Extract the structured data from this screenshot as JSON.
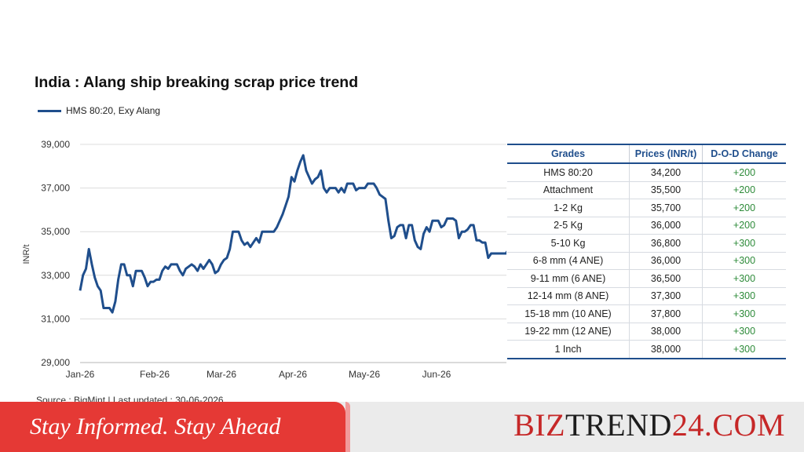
{
  "chart_data": {
    "type": "line",
    "title": "India : Alang ship breaking scrap price trend",
    "ylabel": "INR/t",
    "xlabel": "",
    "ylim": [
      29000,
      39000
    ],
    "yticks": [
      29000,
      31000,
      33000,
      35000,
      37000,
      39000
    ],
    "ytick_labels": [
      "29,000",
      "31,000",
      "33,000",
      "35,000",
      "37,000",
      "39,000"
    ],
    "xticks": [
      "Jan-26",
      "Feb-26",
      "Mar-26",
      "Apr-26",
      "May-26",
      "Jun-26"
    ],
    "grid": "horizontal",
    "legend_position": "top-left",
    "series": [
      {
        "name": "HMS 80:20, Exy Alang",
        "color": "#1f4e8c",
        "values": [
          32300,
          33000,
          33300,
          34200,
          33500,
          32900,
          32500,
          32300,
          31500,
          31500,
          31500,
          31300,
          31800,
          32800,
          33500,
          33500,
          33000,
          33000,
          32500,
          33200,
          33200,
          33200,
          32900,
          32500,
          32700,
          32700,
          32800,
          32800,
          33200,
          33400,
          33300,
          33500,
          33500,
          33500,
          33200,
          33000,
          33300,
          33400,
          33500,
          33400,
          33200,
          33500,
          33300,
          33500,
          33700,
          33500,
          33100,
          33200,
          33500,
          33700,
          33800,
          34200,
          35000,
          35000,
          35000,
          34600,
          34400,
          34500,
          34300,
          34500,
          34700,
          34500,
          35000,
          35000,
          35000,
          35000,
          35000,
          35200,
          35500,
          35800,
          36200,
          36600,
          37500,
          37300,
          37800,
          38200,
          38500,
          37800,
          37500,
          37200,
          37400,
          37500,
          37800,
          37000,
          36800,
          37000,
          37000,
          37000,
          36800,
          37000,
          36800,
          37200,
          37200,
          37200,
          36900,
          37000,
          37000,
          37000,
          37200,
          37200,
          37200,
          37000,
          36700,
          36600,
          36500,
          35500,
          34700,
          34800,
          35200,
          35300,
          35300,
          34700,
          35300,
          35300,
          34600,
          34300,
          34200,
          34900,
          35200,
          35000,
          35500,
          35500,
          35500,
          35200,
          35300,
          35600,
          35600,
          35600,
          35500,
          34700,
          35000,
          35000,
          35100,
          35300,
          35300,
          34600,
          34600,
          34500,
          34500,
          33800,
          34000,
          34000,
          34000,
          34000,
          34000,
          34000,
          34200
        ]
      }
    ]
  },
  "legend": {
    "label": "HMS 80:20, Exy Alang",
    "color": "#1f4e8c"
  },
  "table": {
    "headers": [
      "Grades",
      "Prices (INR/t)",
      "D-O-D Change"
    ],
    "rows": [
      [
        "HMS 80:20",
        "34,200",
        "+200"
      ],
      [
        "Attachment",
        "35,500",
        "+200"
      ],
      [
        "1-2 Kg",
        "35,700",
        "+200"
      ],
      [
        "2-5 Kg",
        "36,000",
        "+200"
      ],
      [
        "5-10 Kg",
        "36,800",
        "+300"
      ],
      [
        "6-8 mm (4 ANE)",
        "36,000",
        "+300"
      ],
      [
        "9-11 mm (6 ANE)",
        "36,500",
        "+300"
      ],
      [
        "12-14 mm (8 ANE)",
        "37,300",
        "+300"
      ],
      [
        "15-18 mm (10 ANE)",
        "37,800",
        "+300"
      ],
      [
        "19-22 mm (12 ANE)",
        "38,000",
        "+300"
      ],
      [
        "1 Inch",
        "38,000",
        "+300"
      ]
    ]
  },
  "source_text": "Source : BigMint | Last updated : 30-06-2026",
  "footer": {
    "tagline": "Stay Informed. Stay Ahead",
    "brand_part1": "BIZ",
    "brand_part2": "TREND",
    "brand_part3": "24.COM",
    "accent_color": "#e53935"
  }
}
